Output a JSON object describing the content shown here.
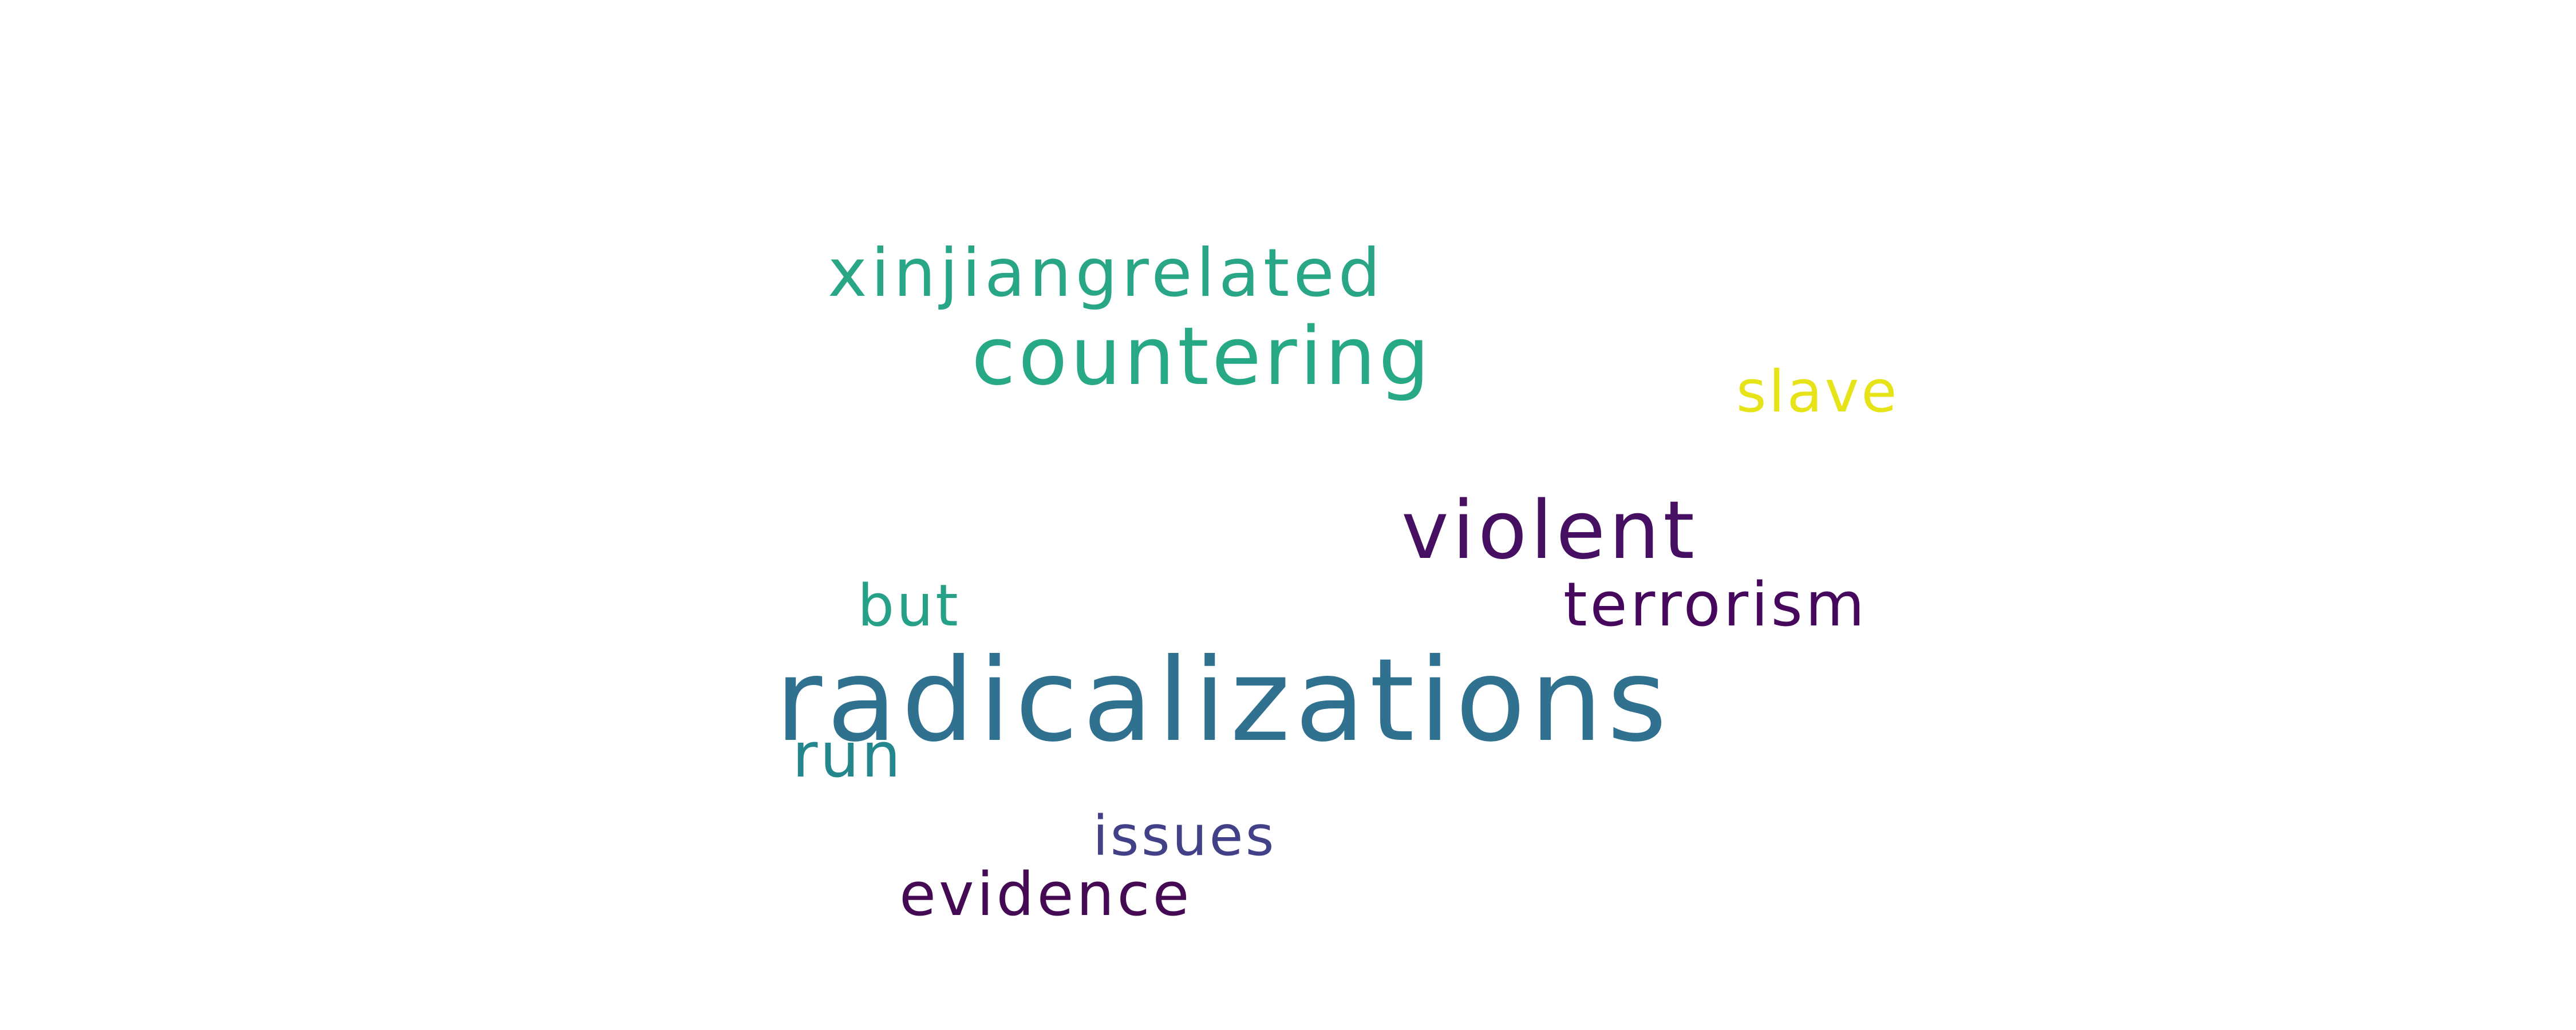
{
  "background": "#ffffff",
  "words": [
    {
      "text": "xinjiangrelated",
      "color": "#29a686"
    },
    {
      "text": "countering",
      "color": "#26a984"
    },
    {
      "text": "slave",
      "color": "#e6e419"
    },
    {
      "text": "violent",
      "color": "#470f62"
    },
    {
      "text": "but",
      "color": "#26a086"
    },
    {
      "text": "terrorism",
      "color": "#46085c"
    },
    {
      "text": "radicalizations",
      "color": "#2f718e"
    },
    {
      "text": "run",
      "color": "#23878d"
    },
    {
      "text": "issues",
      "color": "#424086"
    },
    {
      "text": "evidence",
      "color": "#440b54"
    }
  ]
}
